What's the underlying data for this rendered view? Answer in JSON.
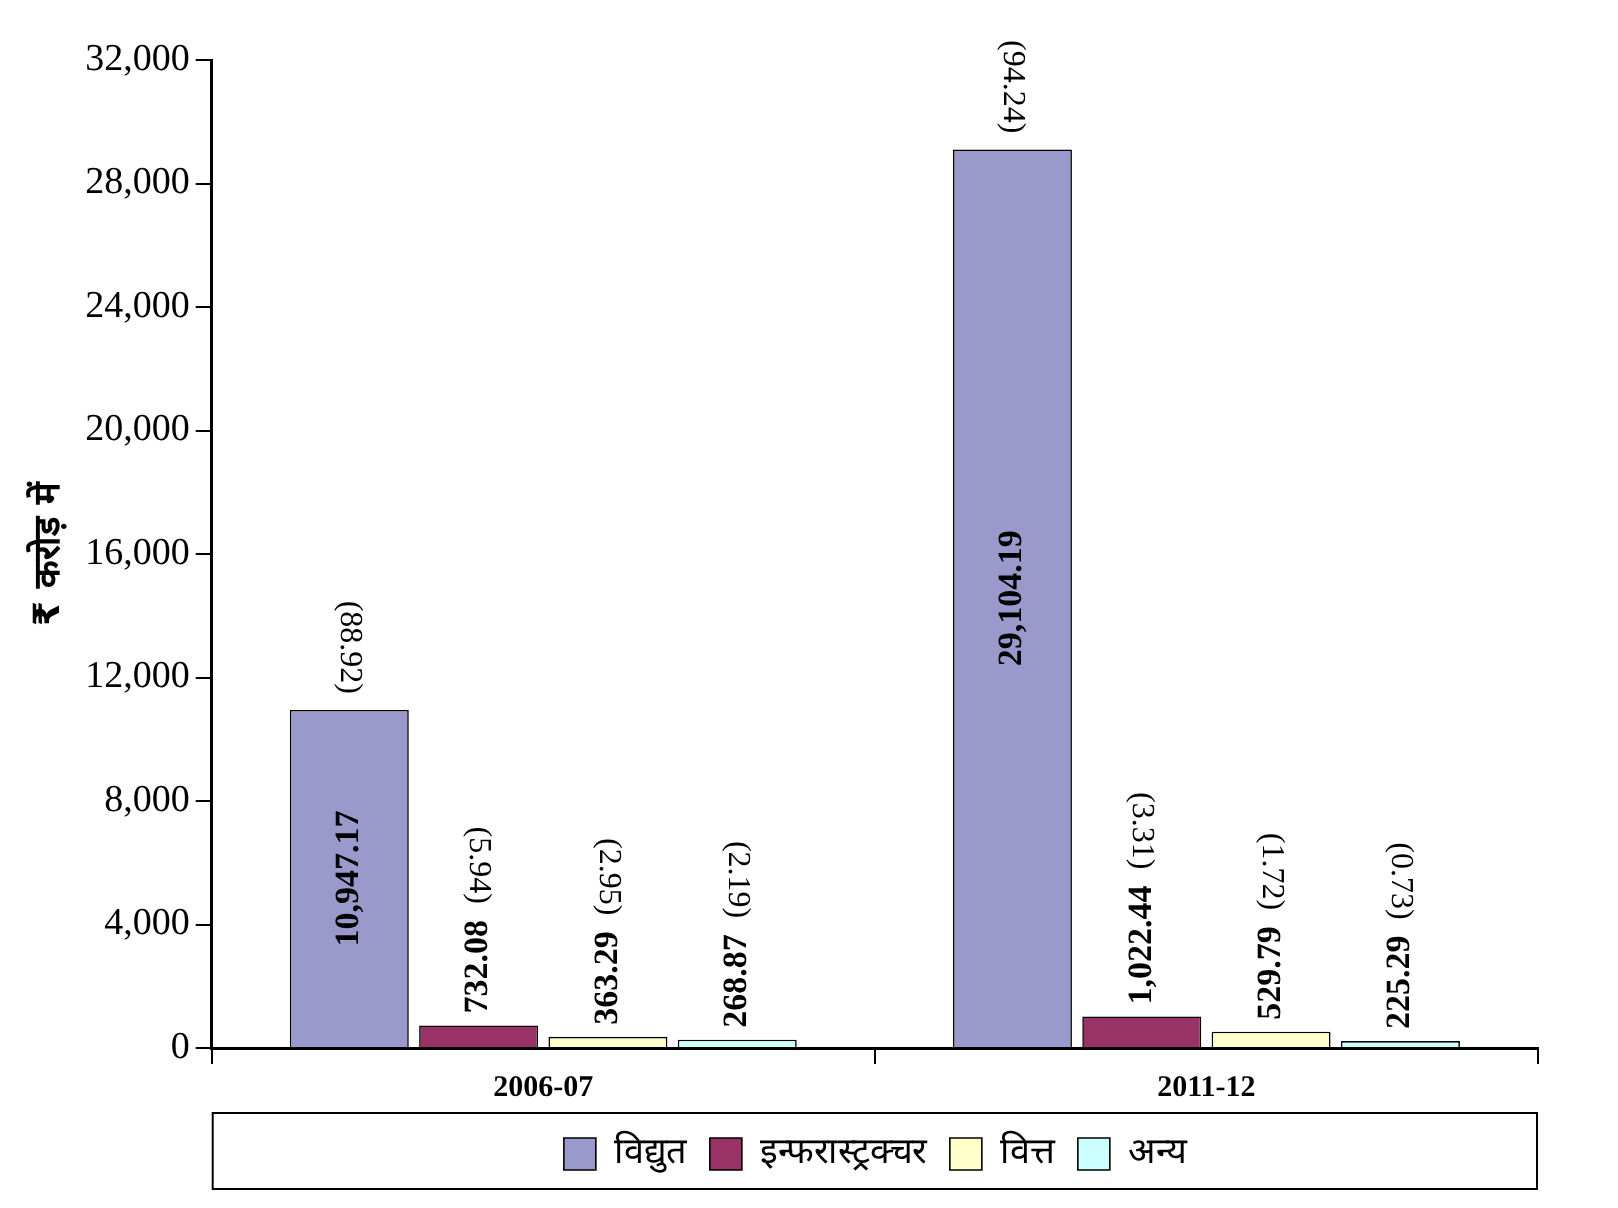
{
  "chart_data": {
    "type": "bar",
    "ylabel": "₹ करोड़ में",
    "categories": [
      "2006-07",
      "2011-12"
    ],
    "series": [
      {
        "name": "विद्युत",
        "color": "#9999cc",
        "values": [
          10947.17,
          29104.19
        ],
        "value_labels": [
          "10,947.17",
          "29,104.19"
        ]
      },
      {
        "name": "इन्फरास्ट्रक्चर",
        "color": "#993366",
        "values": [
          732.08,
          1022.44
        ],
        "value_labels": [
          "732.08",
          "1,022.44"
        ]
      },
      {
        "name": "वित्त",
        "color": "#ffffcc",
        "values": [
          363.29,
          529.79
        ],
        "value_labels": [
          "363.29",
          "529.79"
        ]
      },
      {
        "name": "अन्य",
        "color": "#ccffff",
        "values": [
          268.87,
          225.29
        ],
        "value_labels": [
          "268.87",
          "225.29"
        ]
      }
    ],
    "ylim": [
      0,
      32000
    ],
    "yticks": [
      {
        "value": 0,
        "label": "0"
      },
      {
        "value": 4000,
        "label": "4,000"
      },
      {
        "value": 8000,
        "label": "8,000"
      },
      {
        "value": 12000,
        "label": "12,000"
      },
      {
        "value": 16000,
        "label": "16,000"
      },
      {
        "value": 20000,
        "label": "20,000"
      },
      {
        "value": 24000,
        "label": "24,000"
      },
      {
        "value": 28000,
        "label": "28,000"
      },
      {
        "value": 32000,
        "label": "32,000"
      }
    ],
    "grid": false,
    "legend": "bottom",
    "annotations": [
      "(88.92)",
      "(5.94)",
      "(2.95)",
      "(2.19)",
      "(94.24)",
      "(3.31)",
      "(1.72)",
      "(0.73)"
    ]
  }
}
